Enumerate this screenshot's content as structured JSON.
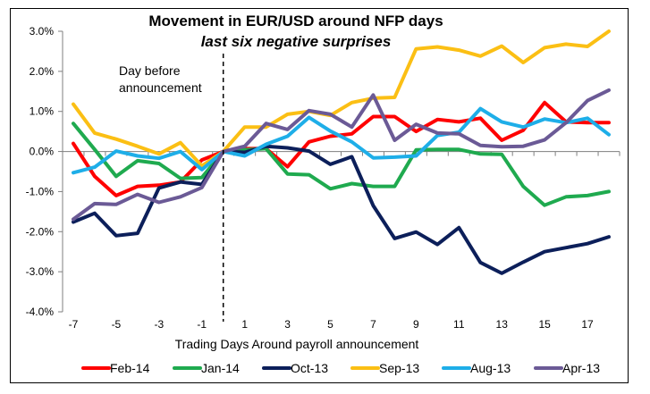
{
  "chart_data": {
    "type": "line",
    "title": "Movement in EUR/USD around NFP days",
    "subtitle": "last six negative surprises",
    "xlabel": "Trading Days Around payroll announcement",
    "ylabel": "",
    "ylim": [
      -4.0,
      3.0
    ],
    "yticks": [
      3.0,
      2.0,
      1.0,
      0.0,
      -1.0,
      -2.0,
      -3.0,
      -4.0
    ],
    "ytick_labels": [
      "3.0%",
      "2.0%",
      "1.0%",
      "0.0%",
      "-1.0%",
      "-2.0%",
      "-3.0%",
      "-4.0%"
    ],
    "x": [
      -7,
      -6,
      -5,
      -4,
      -3,
      -2,
      -1,
      0,
      1,
      2,
      3,
      4,
      5,
      6,
      7,
      8,
      9,
      10,
      11,
      12,
      13,
      14,
      15,
      16,
      17,
      18
    ],
    "xtick_labels": [
      "-7",
      "-5",
      "-3",
      "-1",
      "1",
      "3",
      "5",
      "7",
      "9",
      "11",
      "13",
      "15",
      "17"
    ],
    "xtick_values": [
      -7,
      -5,
      -3,
      -1,
      1,
      3,
      5,
      7,
      9,
      11,
      13,
      15,
      17
    ],
    "annotation": {
      "lines": [
        "Day before",
        "announcement"
      ],
      "at_x": 0
    },
    "grid": false,
    "legend": "bottom",
    "series": [
      {
        "name": "Feb-14",
        "color": "#ff0000",
        "values": [
          0.2,
          -0.62,
          -1.1,
          -0.87,
          -0.84,
          -0.76,
          -0.21,
          0.0,
          0.07,
          0.07,
          -0.38,
          0.24,
          0.38,
          0.44,
          0.87,
          0.87,
          0.5,
          0.8,
          0.74,
          0.83,
          0.28,
          0.53,
          1.22,
          0.74,
          0.72,
          0.72
        ]
      },
      {
        "name": "Jan-14",
        "color": "#1faa4f",
        "values": [
          0.7,
          0.05,
          -0.62,
          -0.23,
          -0.3,
          -0.67,
          -0.65,
          0.0,
          0.04,
          0.07,
          -0.56,
          -0.58,
          -0.93,
          -0.8,
          -0.87,
          -0.87,
          0.04,
          0.05,
          0.05,
          -0.06,
          -0.07,
          -0.87,
          -1.34,
          -1.13,
          -1.1,
          -1.0
        ]
      },
      {
        "name": "Oct-13",
        "color": "#0c1f5a",
        "values": [
          -1.76,
          -1.54,
          -2.1,
          -2.04,
          -0.91,
          -0.76,
          -0.82,
          0.0,
          -0.02,
          0.13,
          0.09,
          0.01,
          -0.32,
          -0.13,
          -1.35,
          -2.17,
          -2.01,
          -2.32,
          -1.9,
          -2.77,
          -3.04,
          -2.76,
          -2.5,
          -2.4,
          -2.3,
          -2.13
        ]
      },
      {
        "name": "Sep-13",
        "color": "#fbbf14",
        "values": [
          1.18,
          0.46,
          0.31,
          0.13,
          -0.06,
          0.22,
          -0.36,
          0.0,
          0.61,
          0.61,
          0.93,
          1.0,
          0.9,
          1.22,
          1.33,
          1.35,
          2.56,
          2.61,
          2.53,
          2.38,
          2.63,
          2.22,
          2.59,
          2.68,
          2.62,
          3.0
        ]
      },
      {
        "name": "Aug-13",
        "color": "#1eaee8",
        "values": [
          -0.53,
          -0.39,
          0.01,
          -0.11,
          -0.17,
          0.0,
          -0.45,
          0.0,
          -0.11,
          0.18,
          0.38,
          0.85,
          0.51,
          0.24,
          -0.16,
          -0.14,
          -0.11,
          0.4,
          0.48,
          1.07,
          0.74,
          0.61,
          0.81,
          0.72,
          0.83,
          0.42
        ]
      },
      {
        "name": "Apr-13",
        "color": "#6b5a96",
        "values": [
          -1.69,
          -1.3,
          -1.32,
          -1.07,
          -1.27,
          -1.13,
          -0.9,
          0.0,
          0.13,
          0.7,
          0.55,
          1.02,
          0.93,
          0.61,
          1.41,
          0.28,
          0.68,
          0.46,
          0.44,
          0.15,
          0.12,
          0.13,
          0.29,
          0.72,
          1.27,
          1.53
        ]
      }
    ]
  }
}
